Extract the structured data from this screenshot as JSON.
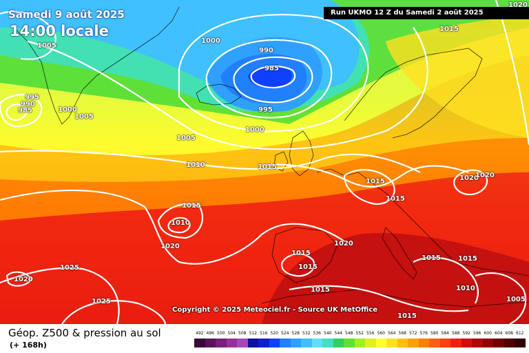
{
  "header": {
    "date": "Samedi 9 août 2025",
    "time": "14:00 locale",
    "run": "Run UKMO 12 Z du Samedi 2 août 2025"
  },
  "copyright": "Copyright © 2025 Meteociel.fr - Source UK MetOffice",
  "footer": {
    "title": "Géop. Z500 & pression au sol",
    "subtitle": "(+ 168h)"
  },
  "isobar_labels": [
    {
      "text": "1005"
    },
    {
      "text": "995"
    },
    {
      "text": "990"
    },
    {
      "text": "985"
    },
    {
      "text": "1000"
    },
    {
      "text": "1005"
    },
    {
      "text": "1000"
    },
    {
      "text": "990"
    },
    {
      "text": "985"
    },
    {
      "text": "995"
    },
    {
      "text": "1000"
    },
    {
      "text": "1005"
    },
    {
      "text": "1010"
    },
    {
      "text": "1015"
    },
    {
      "text": "1015"
    },
    {
      "text": "1015"
    },
    {
      "text": "1015"
    },
    {
      "text": "1020"
    },
    {
      "text": "1020"
    },
    {
      "text": "1015"
    },
    {
      "text": "1010"
    },
    {
      "text": "1020"
    },
    {
      "text": "1025"
    },
    {
      "text": "1020"
    },
    {
      "text": "1025"
    },
    {
      "text": "1015"
    },
    {
      "text": "1015"
    },
    {
      "text": "1020"
    },
    {
      "text": "1015"
    },
    {
      "text": "1015"
    },
    {
      "text": "1015"
    },
    {
      "text": "1010"
    },
    {
      "text": "1005"
    },
    {
      "text": "1015"
    },
    {
      "text": "1020"
    }
  ],
  "scale": {
    "labels": [
      "492",
      "496",
      "500",
      "504",
      "508",
      "512",
      "516",
      "520",
      "524",
      "528",
      "532",
      "536",
      "540",
      "544",
      "548",
      "552",
      "556",
      "560",
      "564",
      "568",
      "572",
      "576",
      "580",
      "584",
      "588",
      "592",
      "596",
      "600",
      "604",
      "608",
      "612"
    ],
    "colors": [
      "#3a0a3a",
      "#5a145a",
      "#78207a",
      "#96309a",
      "#a848b8",
      "#1010a0",
      "#1020d0",
      "#1040ff",
      "#2080ff",
      "#30a0ff",
      "#40c0ff",
      "#60e0ff",
      "#40e0c0",
      "#30d060",
      "#60e030",
      "#a0f020",
      "#e0f020",
      "#ffff30",
      "#ffe020",
      "#ffc010",
      "#ffa000",
      "#ff8000",
      "#ff6010",
      "#ff4010",
      "#f02010",
      "#d01010",
      "#b00808",
      "#900404",
      "#700000",
      "#500000",
      "#300000"
    ]
  }
}
